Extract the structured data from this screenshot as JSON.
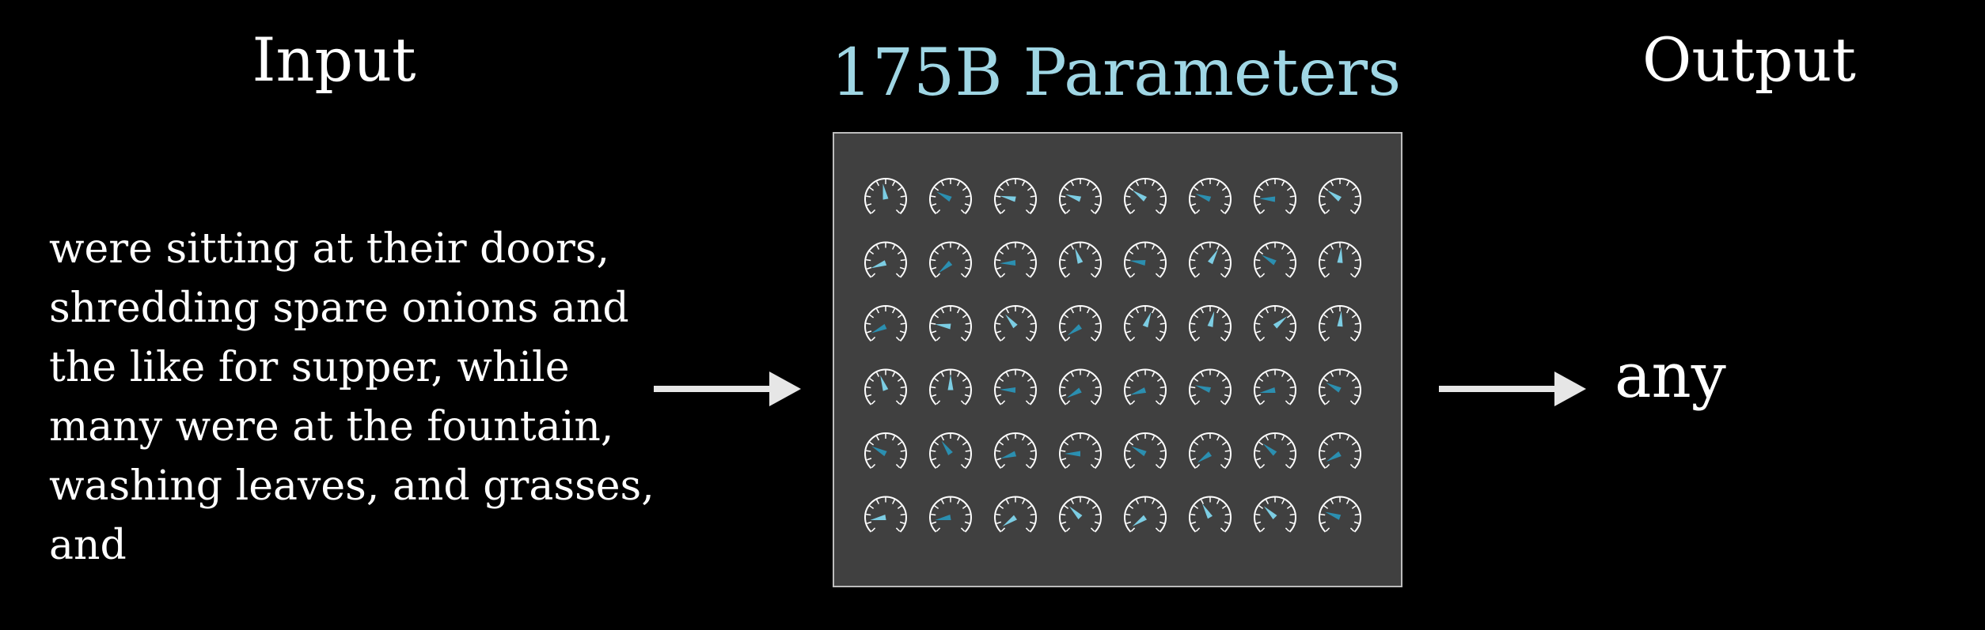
{
  "headings": {
    "input": "Input",
    "parameters": "175B Parameters",
    "output": "Output"
  },
  "input_text": {
    "lines": [
      "were sitting at their doors,",
      "shredding spare onions and",
      "the like for supper, while",
      "many were at the fountain,",
      "washing leaves, and grasses,",
      "and"
    ]
  },
  "output": {
    "word": "any"
  },
  "colors": {
    "background": "#000000",
    "text": "#ffffff",
    "parameters_title": "#9fd6e4",
    "panel": "#404040",
    "panel_border": "#bcbcbc",
    "arrow": "#e6e6e6",
    "dial_outline": "#ffffff",
    "needle_dark": "#2b8fb0",
    "needle_light": "#7ccde3"
  },
  "icons": {
    "arrow": "right-arrow-icon",
    "dial": "dial-gauge-icon"
  },
  "parameter_grid": {
    "rows": 6,
    "columns": 8,
    "needle_angles_deg": [
      [
        -10,
        -62,
        -78,
        -72,
        -55,
        -70,
        -88,
        -55
      ],
      [
        -110,
        -130,
        -92,
        -20,
        -82,
        30,
        -60,
        5
      ],
      [
        -115,
        -82,
        -40,
        -125,
        22,
        15,
        50,
        5
      ],
      [
        -20,
        0,
        -88,
        -120,
        -108,
        -72,
        -100,
        -62
      ],
      [
        -62,
        -35,
        -108,
        -90,
        -62,
        -125,
        -50,
        -120
      ],
      [
        -100,
        -100,
        -125,
        -45,
        -125,
        -30,
        -45,
        -70
      ]
    ],
    "needle_shades": [
      [
        "light",
        "dark",
        "light",
        "light",
        "light",
        "dark",
        "dark",
        "light"
      ],
      [
        "light",
        "dark",
        "dark",
        "light",
        "dark",
        "light",
        "dark",
        "light"
      ],
      [
        "dark",
        "light",
        "light",
        "dark",
        "light",
        "light",
        "light",
        "light"
      ],
      [
        "light",
        "light",
        "dark",
        "dark",
        "dark",
        "dark",
        "dark",
        "dark"
      ],
      [
        "dark",
        "dark",
        "dark",
        "dark",
        "dark",
        "dark",
        "dark",
        "dark"
      ],
      [
        "light",
        "dark",
        "light",
        "light",
        "light",
        "light",
        "light",
        "dark"
      ]
    ]
  }
}
